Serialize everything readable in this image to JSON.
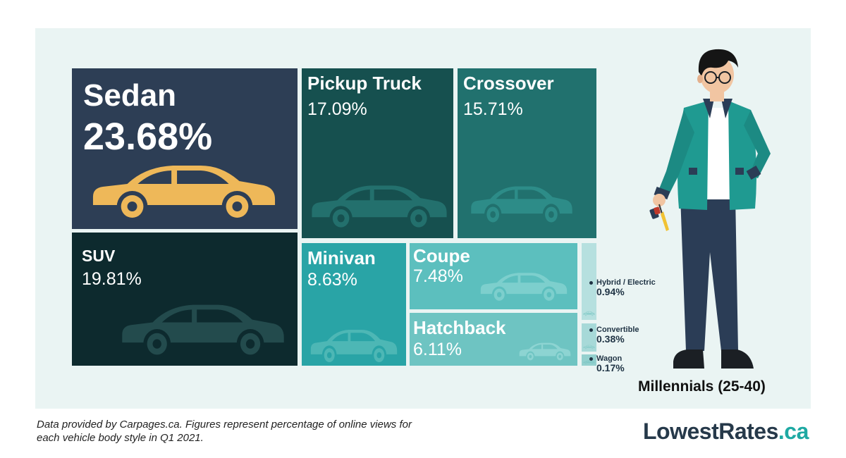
{
  "chart_data": {
    "type": "treemap",
    "categories": [
      "Sedan",
      "SUV",
      "Pickup Truck",
      "Crossover",
      "Minivan",
      "Coupe",
      "Hatchback",
      "Hybrid / Electric",
      "Convertible",
      "Wagon"
    ],
    "values": [
      23.68,
      19.81,
      17.09,
      15.71,
      8.63,
      7.48,
      6.11,
      0.94,
      0.38,
      0.17
    ],
    "labels": [
      "23.68%",
      "19.81%",
      "17.09%",
      "15.71%",
      "8.63%",
      "7.48%",
      "6.11%",
      "0.94%",
      "0.38%",
      "0.17%"
    ],
    "colors": [
      "#2d3e55",
      "#0d2a2e",
      "#16504f",
      "#21716e",
      "#29a4a6",
      "#5cbfbe",
      "#6ec4c2",
      "#b6e0df",
      "#a7d9d8",
      "#93d0ce"
    ],
    "icons": [
      "sedan-icon",
      "suv-icon",
      "pickup-truck-icon",
      "crossover-icon",
      "minivan-icon",
      "coupe-icon",
      "hatchback-icon",
      "hybrid-car-icon",
      "convertible-icon",
      "wagon-icon"
    ],
    "group_label": "Millennials (25-40)"
  },
  "footnote": "Data provided by Carpages.ca. Figures represent percentage of online views for each vehicle body style in Q1 2021.",
  "brand": {
    "name": "LowestRates",
    "tld": ".ca"
  }
}
